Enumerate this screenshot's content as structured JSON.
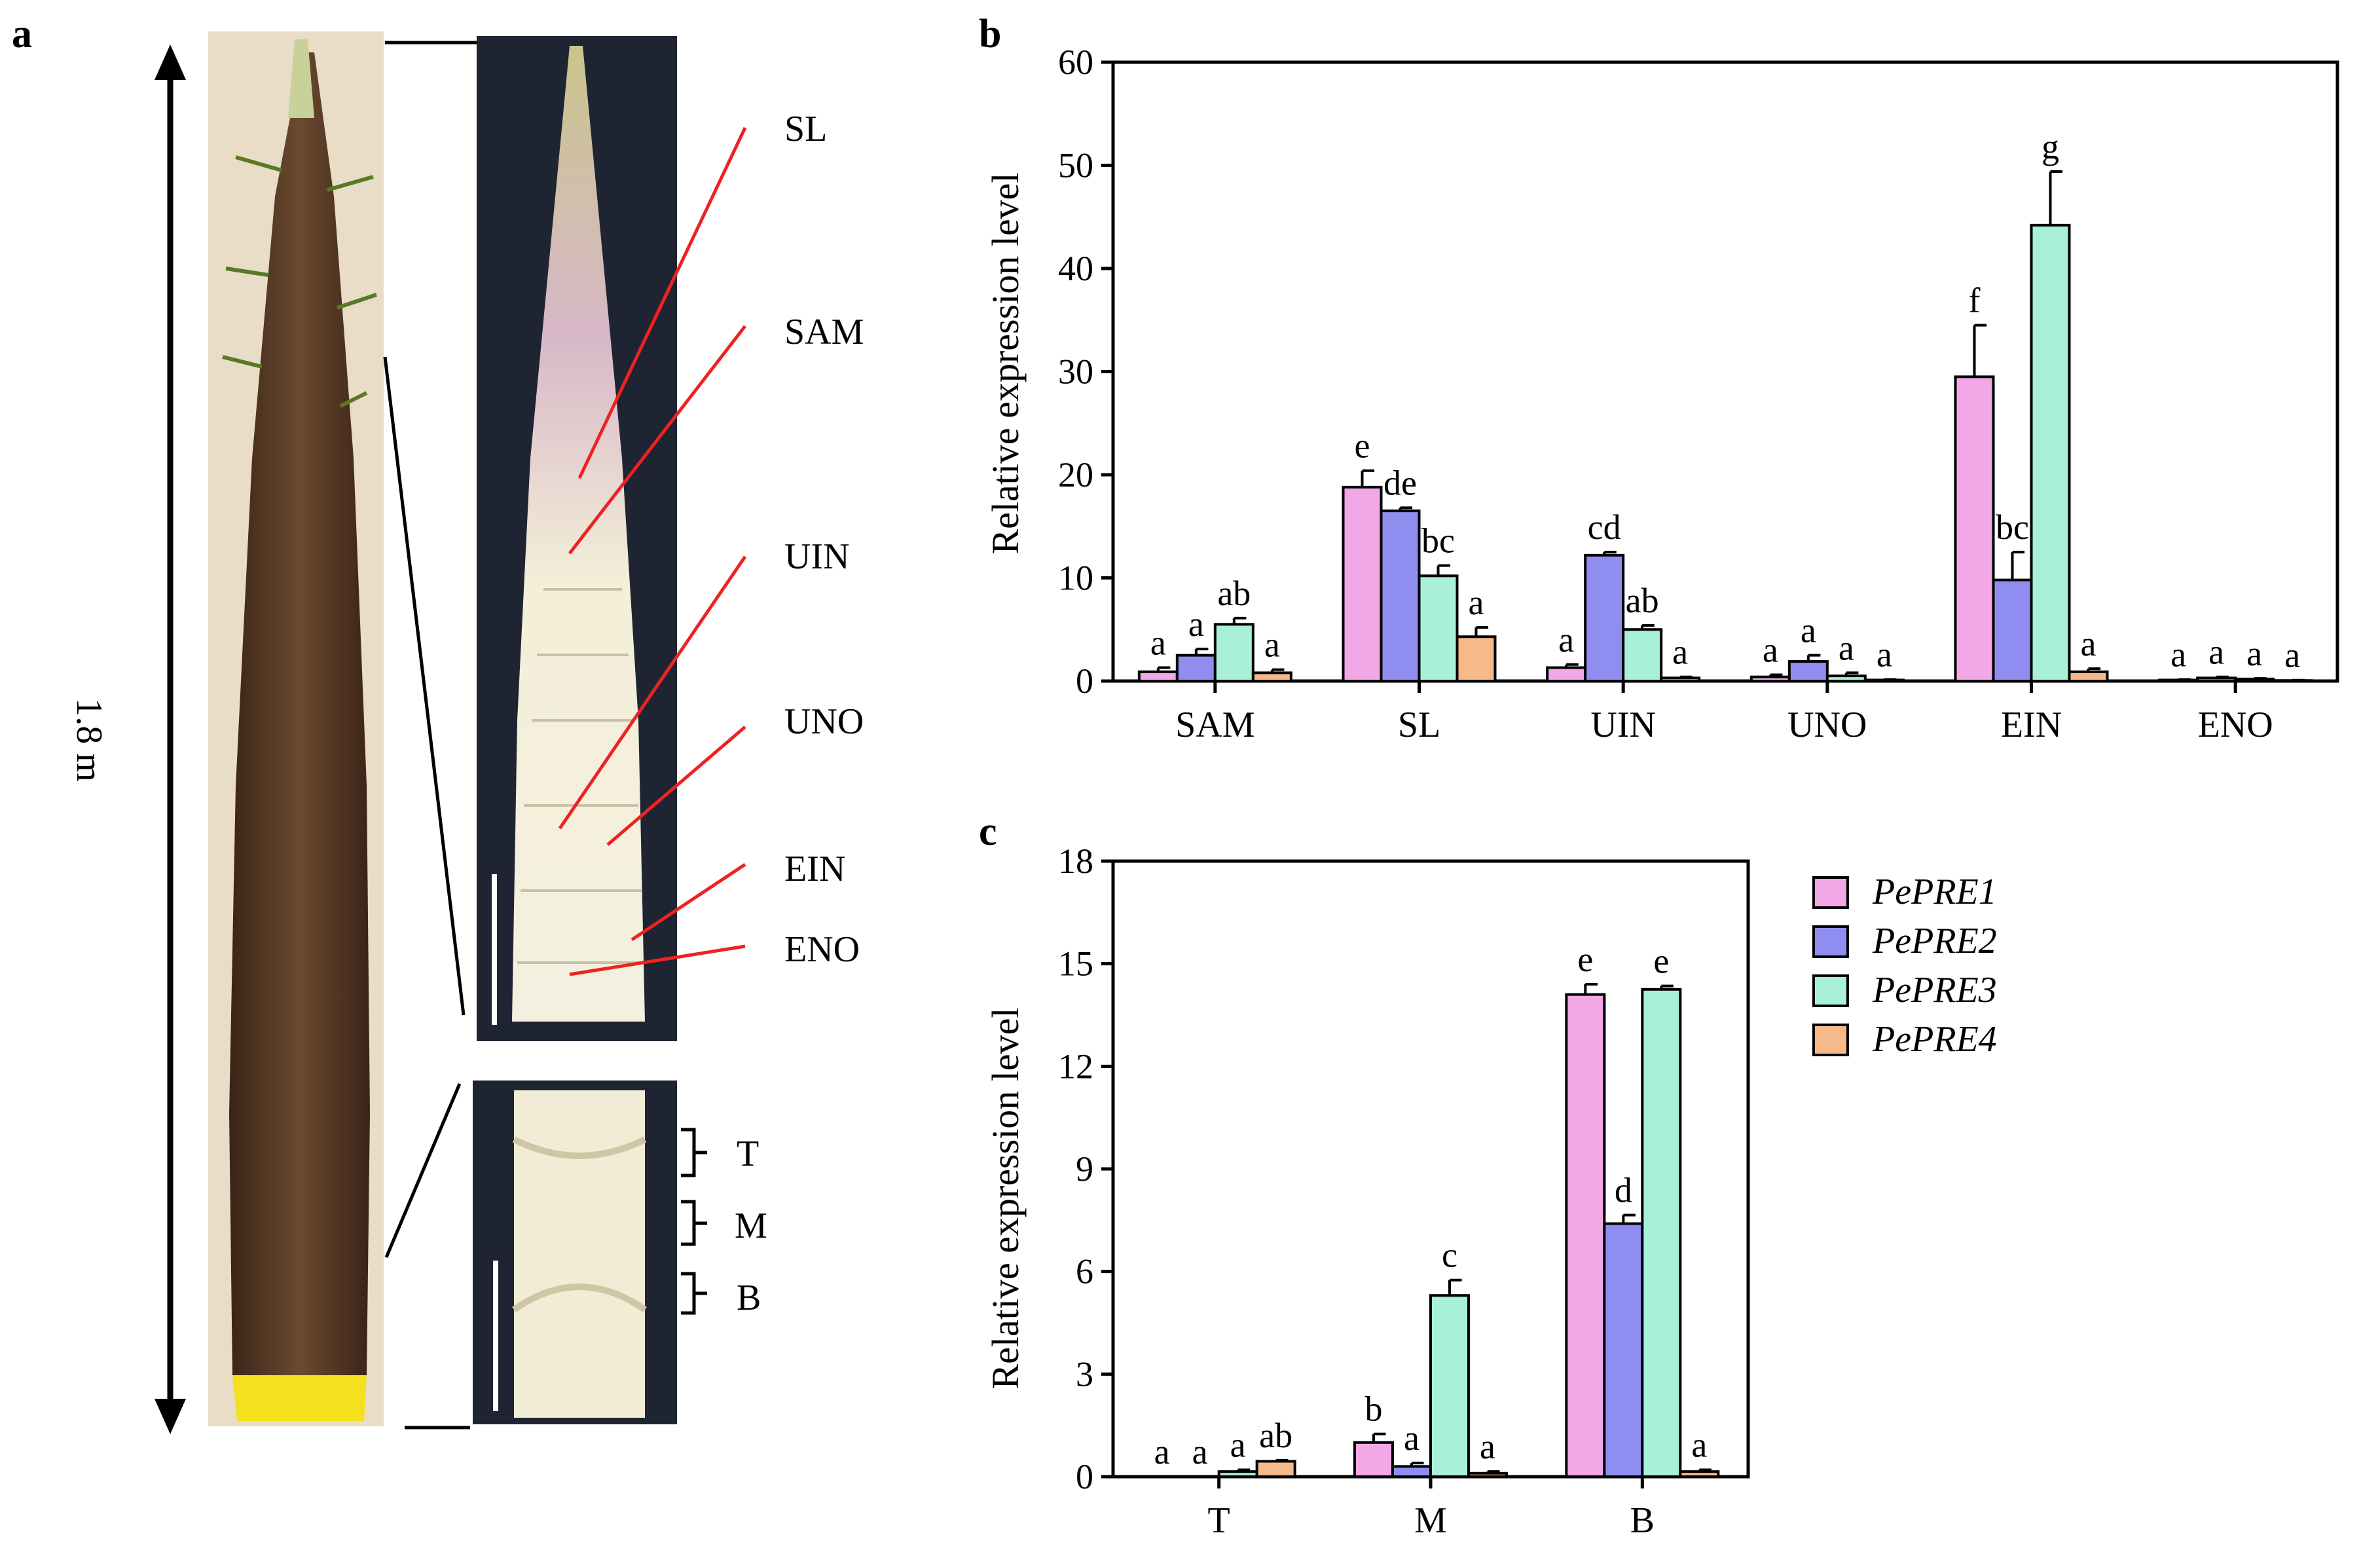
{
  "panels": {
    "a": "a",
    "b": "b",
    "c": "c"
  },
  "photo": {
    "height_label": "1.8 m",
    "section_labels": [
      "SL",
      "SAM",
      "UIN",
      "UNO",
      "EIN",
      "ENO"
    ],
    "internode_labels": [
      "T",
      "M",
      "B"
    ]
  },
  "legend": {
    "entries": [
      "PePRE1",
      "PePRE2",
      "PePRE3",
      "PePRE4"
    ]
  },
  "colors": {
    "PePRE1": "#f2a7e6",
    "PePRE2": "#8f8ef0",
    "PePRE3": "#a8f0d8",
    "PePRE4": "#f6b98a"
  },
  "chart_data": [
    {
      "id": "b",
      "type": "bar",
      "title": "",
      "xlabel": "",
      "ylabel": "Relative expression level",
      "ylim": [
        0,
        60
      ],
      "yticks": [
        0,
        10,
        20,
        30,
        40,
        50,
        60
      ],
      "categories": [
        "SAM",
        "SL",
        "UIN",
        "UNO",
        "EIN",
        "ENO"
      ],
      "series": [
        {
          "name": "PePRE1",
          "values": [
            0.9,
            18.8,
            1.3,
            0.4,
            29.5,
            0.1
          ],
          "errors": [
            0.4,
            1.6,
            0.3,
            0.2,
            5.0,
            0.05
          ],
          "letters": [
            "a",
            "e",
            "a",
            "a",
            "f",
            "a"
          ]
        },
        {
          "name": "PePRE2",
          "values": [
            2.5,
            16.5,
            12.2,
            1.9,
            9.8,
            0.3
          ],
          "errors": [
            0.6,
            0.3,
            0.3,
            0.6,
            2.7,
            0.1
          ],
          "letters": [
            "a",
            "de",
            "cd",
            "a",
            "bc",
            "a"
          ]
        },
        {
          "name": "PePRE3",
          "values": [
            5.5,
            10.2,
            5.0,
            0.5,
            44.2,
            0.2
          ],
          "errors": [
            0.6,
            1.0,
            0.4,
            0.3,
            5.2,
            0.05
          ],
          "letters": [
            "ab",
            "bc",
            "ab",
            "a",
            "g",
            "a"
          ]
        },
        {
          "name": "PePRE4",
          "values": [
            0.8,
            4.3,
            0.3,
            0.1,
            0.9,
            0.05
          ],
          "errors": [
            0.3,
            0.9,
            0.1,
            0.05,
            0.3,
            0.03
          ],
          "letters": [
            "a",
            "a",
            "a",
            "a",
            "a",
            "a"
          ]
        }
      ]
    },
    {
      "id": "c",
      "type": "bar",
      "title": "",
      "xlabel": "",
      "ylabel": "Relative expression level",
      "ylim": [
        0,
        18
      ],
      "yticks": [
        0,
        3,
        6,
        9,
        12,
        15,
        18
      ],
      "categories": [
        "T",
        "M",
        "B"
      ],
      "series": [
        {
          "name": "PePRE1",
          "values": [
            0.0,
            1.0,
            14.1
          ],
          "errors": [
            0.0,
            0.25,
            0.3
          ],
          "letters": [
            "a",
            "b",
            "e"
          ]
        },
        {
          "name": "PePRE2",
          "values": [
            0.0,
            0.3,
            7.4
          ],
          "errors": [
            0.0,
            0.1,
            0.25
          ],
          "letters": [
            "a",
            "a",
            "d"
          ]
        },
        {
          "name": "PePRE3",
          "values": [
            0.15,
            5.3,
            14.25
          ],
          "errors": [
            0.05,
            0.45,
            0.1
          ],
          "letters": [
            "a",
            "c",
            "e"
          ]
        },
        {
          "name": "PePRE4",
          "values": [
            0.45,
            0.1,
            0.15
          ],
          "errors": [
            0.03,
            0.05,
            0.05
          ],
          "letters": [
            "ab",
            "a",
            "a"
          ]
        }
      ]
    }
  ]
}
